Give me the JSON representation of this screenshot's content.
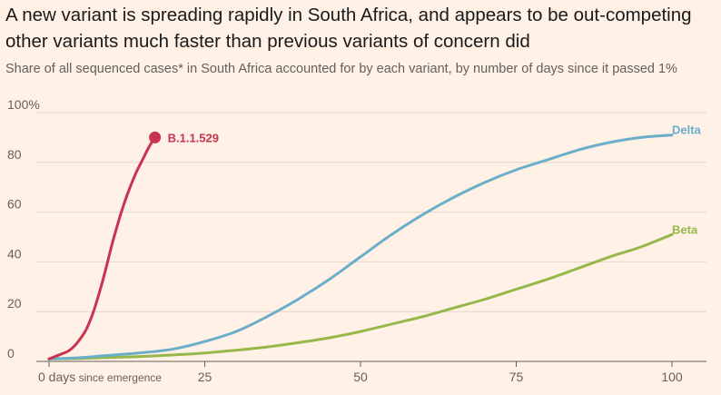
{
  "header": {
    "title": "A new variant is spreading rapidly in South Africa, and appears to be out-competing other variants much faster than previous variants of concern did",
    "subtitle": "Share of all sequenced cases* in South Africa accounted for by each variant, by number of days since it passed 1%"
  },
  "chart_data": {
    "type": "line",
    "title": "A new variant is spreading rapidly in South Africa, and appears to be out-competing other variants much faster than previous variants of concern did",
    "subtitle": "Share of all sequenced cases* in South Africa accounted for by each variant, by number of days since it passed 1%",
    "xlim": [
      0,
      100
    ],
    "ylim": [
      0,
      100
    ],
    "x_ticks": [
      {
        "value": 0,
        "label": "0 days",
        "suffix": " since emergence"
      },
      {
        "value": 25,
        "label": "25",
        "suffix": ""
      },
      {
        "value": 50,
        "label": "50",
        "suffix": ""
      },
      {
        "value": 75,
        "label": "75",
        "suffix": ""
      },
      {
        "value": 100,
        "label": "100",
        "suffix": ""
      }
    ],
    "y_ticks": [
      {
        "value": 0,
        "label": "0"
      },
      {
        "value": 20,
        "label": "20"
      },
      {
        "value": 40,
        "label": "40"
      },
      {
        "value": 60,
        "label": "60"
      },
      {
        "value": 80,
        "label": "80"
      },
      {
        "value": 100,
        "label": "100%"
      }
    ],
    "grid": true,
    "legend": "direct labels at line ends",
    "series": [
      {
        "name": "B.1.1.529",
        "color": "#c8334f",
        "end_marker": true,
        "x": [
          0,
          1,
          2,
          3,
          4,
          5,
          6,
          7,
          8,
          9,
          10,
          11,
          12,
          13,
          14,
          15,
          16,
          17
        ],
        "y": [
          1,
          2,
          3,
          4,
          6,
          9,
          13,
          19,
          27,
          36,
          46,
          55,
          63,
          70,
          76,
          81,
          86,
          90
        ]
      },
      {
        "name": "Delta",
        "color": "#6aaec9",
        "end_marker": false,
        "x": [
          0,
          5,
          10,
          15,
          20,
          25,
          30,
          35,
          40,
          45,
          50,
          55,
          60,
          65,
          70,
          75,
          80,
          85,
          90,
          95,
          100
        ],
        "y": [
          1,
          1.5,
          2.5,
          3.5,
          5,
          8,
          12,
          18,
          25,
          33,
          42,
          51,
          59,
          66,
          72,
          77,
          81,
          85,
          88,
          90,
          91
        ]
      },
      {
        "name": "Beta",
        "color": "#96b84a",
        "end_marker": false,
        "x": [
          0,
          5,
          10,
          15,
          20,
          25,
          30,
          35,
          40,
          45,
          50,
          55,
          60,
          65,
          70,
          75,
          80,
          85,
          90,
          95,
          100
        ],
        "y": [
          1,
          1.2,
          1.6,
          2,
          2.6,
          3.4,
          4.5,
          5.8,
          7.5,
          9.5,
          12,
          15,
          18,
          21.5,
          25,
          29,
          33,
          37.5,
          42,
          46,
          51
        ]
      }
    ]
  }
}
